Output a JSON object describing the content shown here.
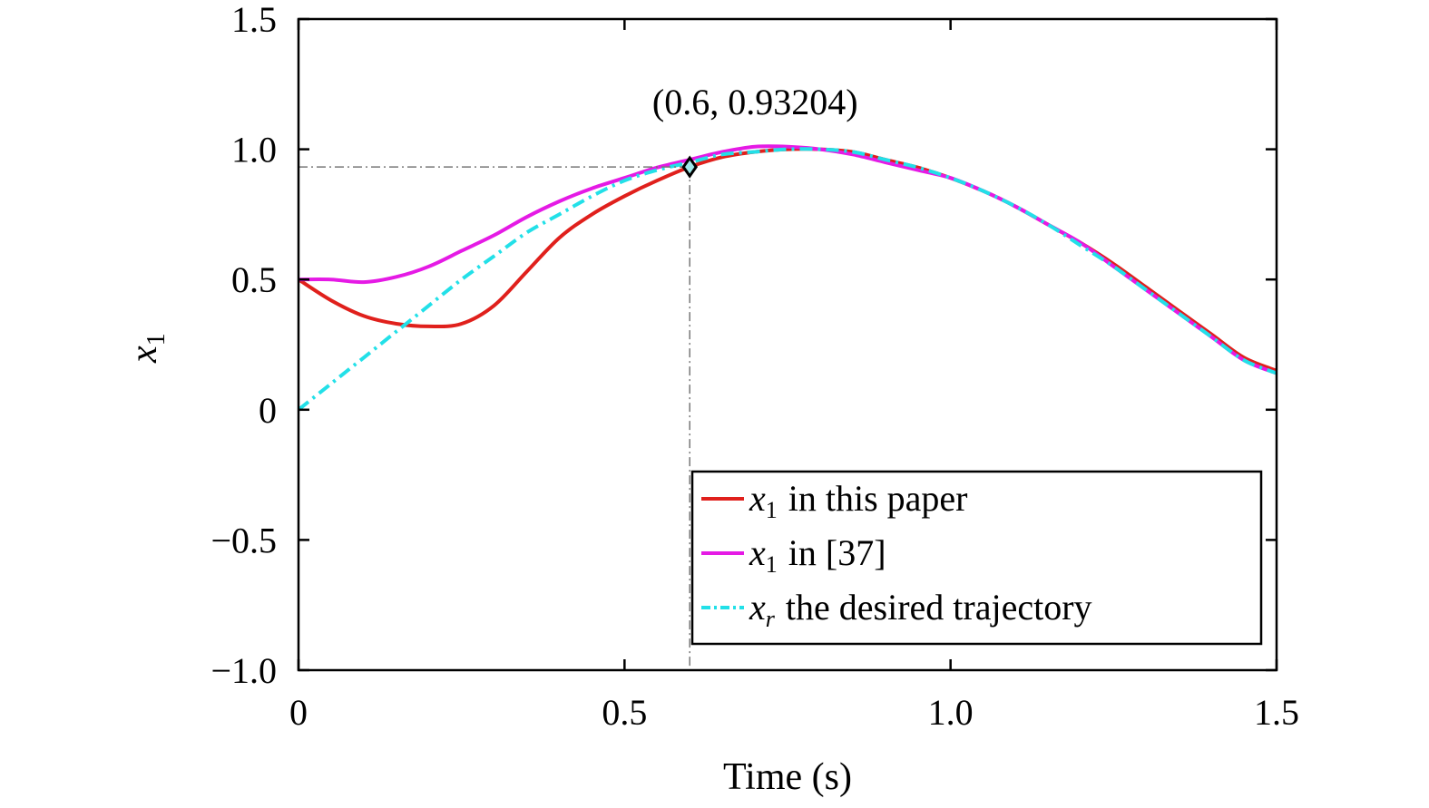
{
  "chart_data": {
    "type": "line",
    "xlabel": "Time (s)",
    "ylabel": {
      "base": "x",
      "sub": "1"
    },
    "xlim": [
      0,
      1.5
    ],
    "ylim": [
      -1.0,
      1.5
    ],
    "xticks": [
      0,
      0.5,
      1.0,
      1.5
    ],
    "xtick_labels": [
      "0",
      "0.5",
      "1.0",
      "1.5"
    ],
    "yticks": [
      -1.0,
      -0.5,
      0,
      0.5,
      1.0,
      1.5
    ],
    "ytick_labels": [
      "−1.0",
      "−0.5",
      "0",
      "0.5",
      "1.0",
      "1.5"
    ],
    "grid": false,
    "legend_position": "bottom-right",
    "annotation": {
      "text": "(0.6, 0.93204)",
      "x": 0.6,
      "y": 0.93204,
      "marker": "diamond",
      "guide_lines": true
    },
    "series": [
      {
        "legend": {
          "var": "x",
          "sub": "1",
          "rest": "in this paper"
        },
        "color": "#e0201c",
        "dash": "solid",
        "x": [
          0,
          0.05,
          0.1,
          0.15,
          0.2,
          0.25,
          0.3,
          0.35,
          0.4,
          0.45,
          0.5,
          0.55,
          0.6,
          0.65,
          0.7,
          0.75,
          0.8,
          0.85,
          0.9,
          0.95,
          1.0,
          1.05,
          1.1,
          1.15,
          1.2,
          1.25,
          1.3,
          1.35,
          1.4,
          1.45,
          1.5
        ],
        "y": [
          0.5,
          0.42,
          0.36,
          0.33,
          0.32,
          0.33,
          0.4,
          0.53,
          0.66,
          0.75,
          0.82,
          0.88,
          0.932,
          0.97,
          0.99,
          1.0,
          1.0,
          0.99,
          0.96,
          0.93,
          0.89,
          0.84,
          0.78,
          0.71,
          0.64,
          0.56,
          0.47,
          0.38,
          0.29,
          0.2,
          0.15
        ]
      },
      {
        "legend": {
          "var": "x",
          "sub": "1",
          "rest": "in [37]"
        },
        "color": "#e51ae5",
        "dash": "solid",
        "x": [
          0,
          0.05,
          0.1,
          0.15,
          0.2,
          0.25,
          0.3,
          0.35,
          0.4,
          0.45,
          0.5,
          0.55,
          0.6,
          0.65,
          0.7,
          0.75,
          0.8,
          0.85,
          0.9,
          0.95,
          1.0,
          1.05,
          1.1,
          1.15,
          1.2,
          1.25,
          1.3,
          1.35,
          1.4,
          1.45,
          1.5
        ],
        "y": [
          0.5,
          0.5,
          0.49,
          0.51,
          0.55,
          0.61,
          0.67,
          0.74,
          0.8,
          0.85,
          0.89,
          0.93,
          0.96,
          0.99,
          1.01,
          1.01,
          1.0,
          0.98,
          0.95,
          0.92,
          0.89,
          0.84,
          0.78,
          0.71,
          0.64,
          0.55,
          0.46,
          0.37,
          0.28,
          0.19,
          0.14
        ]
      },
      {
        "legend": {
          "var": "x",
          "sub": "r",
          "rest": "the desired trajectory"
        },
        "color": "#22e0e8",
        "dash": "dashdot",
        "x": [
          0,
          0.05,
          0.1,
          0.15,
          0.2,
          0.25,
          0.3,
          0.35,
          0.4,
          0.45,
          0.5,
          0.55,
          0.6,
          0.65,
          0.7,
          0.75,
          0.8,
          0.85,
          0.9,
          0.95,
          1.0,
          1.05,
          1.1,
          1.15,
          1.2,
          1.25,
          1.3,
          1.35,
          1.4,
          1.45,
          1.5
        ],
        "y": [
          0.0,
          0.1,
          0.2,
          0.3,
          0.4,
          0.5,
          0.59,
          0.68,
          0.75,
          0.82,
          0.88,
          0.92,
          0.95,
          0.98,
          0.99,
          1.0,
          1.0,
          0.99,
          0.96,
          0.93,
          0.89,
          0.84,
          0.78,
          0.71,
          0.63,
          0.55,
          0.46,
          0.37,
          0.28,
          0.19,
          0.14
        ]
      }
    ]
  }
}
